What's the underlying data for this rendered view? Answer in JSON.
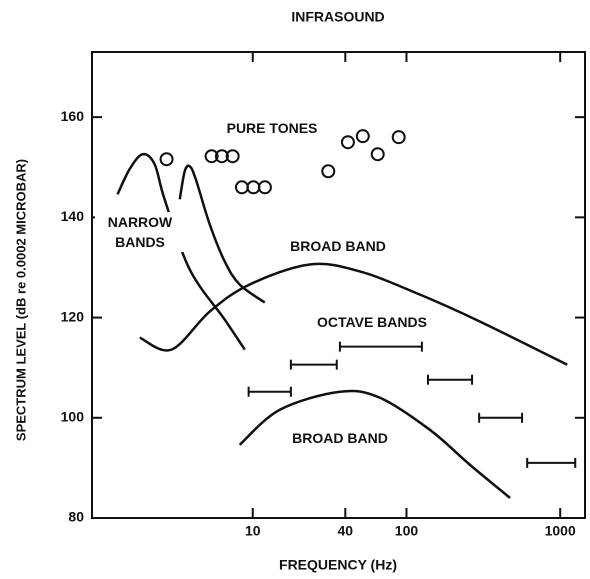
{
  "chart_data": {
    "type": "mixed",
    "title": "INFRASOUND",
    "x_label": "FREQUENCY (Hz)",
    "y_label": "SPECTRUM LEVEL (dB re 0.0002 MICROBAR)",
    "log_x": true,
    "color": "#111111",
    "xlim": [
      0.9,
      1450
    ],
    "ylim": [
      80,
      173
    ],
    "xticks": [
      10,
      40,
      100,
      1000
    ],
    "yticks": [
      80,
      100,
      120,
      140,
      160
    ],
    "series": [
      {
        "name": "PURE TONES",
        "kind": "scatter",
        "x": [
          2.75,
          5.4,
          6.3,
          7.4,
          8.5,
          10.1,
          12,
          31,
          41.6,
          52,
          65,
          89
        ],
        "values": [
          151.6,
          152.2,
          152.2,
          152.2,
          146,
          146,
          146,
          149.2,
          155,
          156.2,
          152.6,
          156
        ]
      },
      {
        "name": "NARROW BANDS",
        "kind": "line",
        "x": [
          1.32,
          1.58,
          1.92,
          2.3,
          2.67,
          3.89,
          6.57,
          8.87,
          null,
          3.35,
          3.61,
          3.89,
          4.26,
          5.25,
          6.57,
          8.22,
          11.97
        ],
        "values": [
          144.6,
          149.6,
          152.6,
          150.6,
          143.6,
          129.6,
          119.6,
          113.6,
          null,
          143.6,
          149.2,
          150.2,
          147.6,
          138.6,
          131.2,
          126.6,
          123
        ]
      },
      {
        "name": "BROAD BAND",
        "kind": "line",
        "x": [
          1.84,
          2.96,
          5.25,
          9.55,
          23.5,
          49.8,
          122,
          301,
          1111
        ],
        "values": [
          116,
          113.6,
          121.2,
          126.6,
          130.6,
          129.2,
          124.6,
          119.2,
          110.6
        ]
      },
      {
        "name": "OCTAVE BANDS",
        "kind": "intervals",
        "segments": [
          {
            "x": [
              9.4,
              17.7
            ],
            "value": 105.2
          },
          {
            "x": [
              17.7,
              35.2
            ],
            "value": 110.6
          },
          {
            "x": [
              36.9,
              126
            ],
            "value": 114.2
          },
          {
            "x": [
              138,
              267
            ],
            "value": 107.6
          },
          {
            "x": [
              297,
              565
            ],
            "value": 100
          },
          {
            "x": [
              610,
              1253
            ],
            "value": 91
          }
        ]
      },
      {
        "name": "BROAD BAND",
        "kind": "line",
        "x": [
          8.22,
          15,
          36.9,
          67.2,
          142,
          259,
          472
        ],
        "values": [
          94.6,
          101.6,
          105.2,
          104,
          97.6,
          90.6,
          84
        ]
      }
    ]
  }
}
